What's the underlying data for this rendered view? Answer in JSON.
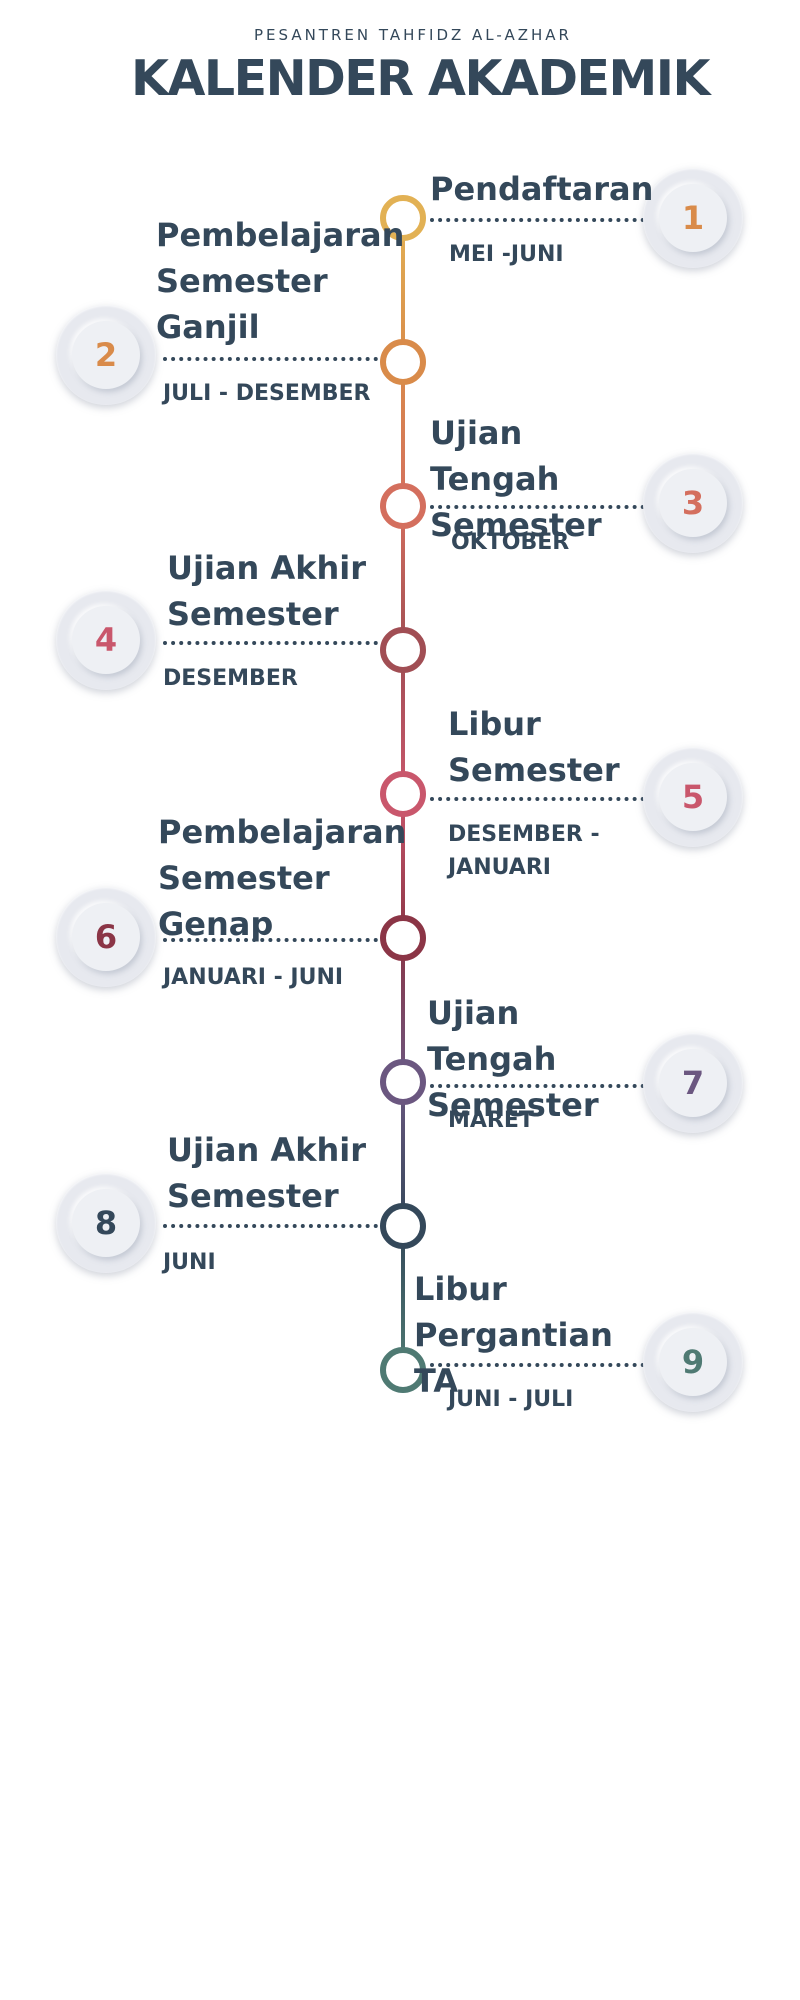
{
  "header": {
    "subtitle": "PESANTREN TAHFIDZ AL-AZHAR",
    "title": "KALENDER AKADEMIK"
  },
  "events": [
    {
      "number": "1",
      "title": "Pendaftaran",
      "date": "MEI -JUNI",
      "color": "#e2b154"
    },
    {
      "number": "2",
      "title": "Pembelajaran Semester Ganjil",
      "date": "JULI - DESEMBER",
      "color": "#d98b4a"
    },
    {
      "number": "3",
      "title": "Ujian Tengah Semester",
      "date": "OKTOBER",
      "color": "#d46f5e"
    },
    {
      "number": "4",
      "title": "Ujian Akhir Semester",
      "date": "DESEMBER",
      "color": "#a14e54"
    },
    {
      "number": "5",
      "title": "Libur Semester",
      "date": "DESEMBER - JANUARI",
      "color": "#c9576c"
    },
    {
      "number": "6",
      "title": "Pembelajaran Semester Genap",
      "date": "JANUARI - JUNI",
      "color": "#8b3546"
    },
    {
      "number": "7",
      "title": "Ujian Tengah Semester",
      "date": "MARET",
      "color": "#6b5780"
    },
    {
      "number": "8",
      "title": "Ujian Akhir Semester",
      "date": "JUNI",
      "color": "#34485a"
    },
    {
      "number": "9",
      "title": "Libur Pergantian TA",
      "date": "JUNI - JULI",
      "color": "#4f7a73"
    }
  ]
}
